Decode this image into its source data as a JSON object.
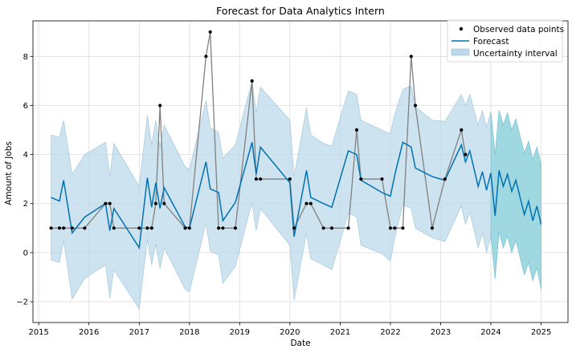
{
  "chart_data": {
    "type": "line",
    "title": "Forecast for Data Analytics Intern",
    "xlabel": "Date",
    "ylabel": "Amount of Jobs",
    "xlim": [
      "2014-11-20",
      "2025-07-15"
    ],
    "ylim": [
      -2.85,
      9.45
    ],
    "x_ticks": [
      "2015-01-01",
      "2016-01-01",
      "2017-01-01",
      "2018-01-01",
      "2019-01-01",
      "2020-01-01",
      "2021-01-01",
      "2022-01-01",
      "2023-01-01",
      "2024-01-01",
      "2025-01-01"
    ],
    "x_tick_labels": [
      "2015",
      "2016",
      "2017",
      "2018",
      "2019",
      "2020",
      "2021",
      "2022",
      "2023",
      "2024",
      "2025"
    ],
    "y_ticks": [
      -2,
      0,
      2,
      4,
      6,
      8
    ],
    "grid": true,
    "legend_position": "top-right",
    "legend": [
      {
        "label": "Observed data points",
        "kind": "marker"
      },
      {
        "label": "Forecast",
        "kind": "line"
      },
      {
        "label": "Uncertainty interval",
        "kind": "patch"
      }
    ],
    "colors": {
      "observed": "#000000",
      "observed_line": "#808080",
      "forecast": "#0072B2",
      "interval": "#bcd9ea",
      "interval_future": "#8dd3dd"
    },
    "forecast_start": "2024-01-01",
    "observed": [
      {
        "x": "2015-04-01",
        "y": 1
      },
      {
        "x": "2015-06-01",
        "y": 1
      },
      {
        "x": "2015-07-01",
        "y": 1
      },
      {
        "x": "2015-09-01",
        "y": 1
      },
      {
        "x": "2015-12-01",
        "y": 1
      },
      {
        "x": "2016-05-01",
        "y": 2
      },
      {
        "x": "2016-06-01",
        "y": 2
      },
      {
        "x": "2016-07-01",
        "y": 1
      },
      {
        "x": "2017-01-01",
        "y": 1
      },
      {
        "x": "2017-03-01",
        "y": 1
      },
      {
        "x": "2017-04-01",
        "y": 1
      },
      {
        "x": "2017-05-01",
        "y": 2
      },
      {
        "x": "2017-06-01",
        "y": 6
      },
      {
        "x": "2017-07-01",
        "y": 2
      },
      {
        "x": "2017-12-01",
        "y": 1
      },
      {
        "x": "2018-01-01",
        "y": 1
      },
      {
        "x": "2018-05-01",
        "y": 8
      },
      {
        "x": "2018-06-01",
        "y": 9
      },
      {
        "x": "2018-08-01",
        "y": 1
      },
      {
        "x": "2018-09-01",
        "y": 1
      },
      {
        "x": "2018-12-01",
        "y": 1
      },
      {
        "x": "2019-04-01",
        "y": 7
      },
      {
        "x": "2019-05-01",
        "y": 3
      },
      {
        "x": "2019-06-01",
        "y": 3
      },
      {
        "x": "2020-01-01",
        "y": 3
      },
      {
        "x": "2020-02-01",
        "y": 1
      },
      {
        "x": "2020-05-01",
        "y": 2
      },
      {
        "x": "2020-06-01",
        "y": 2
      },
      {
        "x": "2020-09-01",
        "y": 1
      },
      {
        "x": "2020-11-01",
        "y": 1
      },
      {
        "x": "2021-03-01",
        "y": 1
      },
      {
        "x": "2021-05-01",
        "y": 5
      },
      {
        "x": "2021-06-01",
        "y": 3
      },
      {
        "x": "2021-11-01",
        "y": 3
      },
      {
        "x": "2022-01-01",
        "y": 1
      },
      {
        "x": "2022-02-01",
        "y": 1
      },
      {
        "x": "2022-04-01",
        "y": 1
      },
      {
        "x": "2022-06-01",
        "y": 8
      },
      {
        "x": "2022-07-01",
        "y": 6
      },
      {
        "x": "2022-11-01",
        "y": 1
      },
      {
        "x": "2023-02-01",
        "y": 3
      },
      {
        "x": "2023-06-01",
        "y": 5
      },
      {
        "x": "2023-07-01",
        "y": 4
      }
    ],
    "forecast": [
      {
        "x": "2015-04-01",
        "y": 2.25,
        "lo": -0.3,
        "hi": 4.8
      },
      {
        "x": "2015-06-01",
        "y": 2.1,
        "lo": -0.4,
        "hi": 4.7
      },
      {
        "x": "2015-07-01",
        "y": 2.95,
        "lo": 0.5,
        "hi": 5.4
      },
      {
        "x": "2015-09-01",
        "y": 0.8,
        "lo": -1.9,
        "hi": 3.2
      },
      {
        "x": "2015-12-01",
        "y": 1.45,
        "lo": -1.05,
        "hi": 4.0
      },
      {
        "x": "2016-05-01",
        "y": 2.0,
        "lo": -0.5,
        "hi": 4.5
      },
      {
        "x": "2016-06-01",
        "y": 0.9,
        "lo": -1.85,
        "hi": 3.1
      },
      {
        "x": "2016-07-01",
        "y": 1.8,
        "lo": -0.7,
        "hi": 4.45
      },
      {
        "x": "2017-01-01",
        "y": 0.2,
        "lo": -2.3,
        "hi": 2.7
      },
      {
        "x": "2017-03-01",
        "y": 3.05,
        "lo": 0.55,
        "hi": 5.6
      },
      {
        "x": "2017-04-01",
        "y": 1.85,
        "lo": -0.5,
        "hi": 4.4
      },
      {
        "x": "2017-05-01",
        "y": 2.85,
        "lo": 0.35,
        "hi": 5.4
      },
      {
        "x": "2017-06-01",
        "y": 1.8,
        "lo": -0.65,
        "hi": 4.3
      },
      {
        "x": "2017-07-01",
        "y": 2.65,
        "lo": 0.2,
        "hi": 5.2
      },
      {
        "x": "2017-12-01",
        "y": 1.05,
        "lo": -1.5,
        "hi": 3.5
      },
      {
        "x": "2018-01-01",
        "y": 1.0,
        "lo": -1.6,
        "hi": 3.4
      },
      {
        "x": "2018-05-01",
        "y": 3.7,
        "lo": 1.2,
        "hi": 6.2
      },
      {
        "x": "2018-06-01",
        "y": 2.6,
        "lo": 0.05,
        "hi": 5.1
      },
      {
        "x": "2018-08-01",
        "y": 2.45,
        "lo": -0.1,
        "hi": 4.9
      },
      {
        "x": "2018-09-01",
        "y": 1.3,
        "lo": -1.25,
        "hi": 3.85
      },
      {
        "x": "2018-12-01",
        "y": 2.05,
        "lo": -0.55,
        "hi": 4.4
      },
      {
        "x": "2019-04-01",
        "y": 4.5,
        "lo": 2.05,
        "hi": 7.0
      },
      {
        "x": "2019-05-01",
        "y": 3.2,
        "lo": 0.9,
        "hi": 5.7
      },
      {
        "x": "2019-06-01",
        "y": 4.3,
        "lo": 1.8,
        "hi": 6.75
      },
      {
        "x": "2020-01-01",
        "y": 2.85,
        "lo": 0.3,
        "hi": 5.4
      },
      {
        "x": "2020-02-01",
        "y": 0.65,
        "lo": -1.95,
        "hi": 3.1
      },
      {
        "x": "2020-05-01",
        "y": 3.35,
        "lo": 0.8,
        "hi": 5.9
      },
      {
        "x": "2020-06-01",
        "y": 2.25,
        "lo": -0.25,
        "hi": 4.8
      },
      {
        "x": "2020-09-01",
        "y": 2.0,
        "lo": -0.5,
        "hi": 4.45
      },
      {
        "x": "2020-11-01",
        "y": 1.85,
        "lo": -0.7,
        "hi": 4.35
      },
      {
        "x": "2021-03-01",
        "y": 4.15,
        "lo": 1.6,
        "hi": 6.6
      },
      {
        "x": "2021-05-01",
        "y": 4.0,
        "lo": 1.45,
        "hi": 6.45
      },
      {
        "x": "2021-06-01",
        "y": 2.95,
        "lo": 0.3,
        "hi": 5.4
      },
      {
        "x": "2021-11-01",
        "y": 2.45,
        "lo": -0.05,
        "hi": 5.0
      },
      {
        "x": "2022-01-01",
        "y": 2.3,
        "lo": -0.35,
        "hi": 4.85
      },
      {
        "x": "2022-02-01",
        "y": 3.15,
        "lo": 0.6,
        "hi": 5.65
      },
      {
        "x": "2022-04-01",
        "y": 4.5,
        "lo": 1.95,
        "hi": 6.65
      },
      {
        "x": "2022-06-01",
        "y": 4.3,
        "lo": 1.8,
        "hi": 6.8
      },
      {
        "x": "2022-07-01",
        "y": 3.45,
        "lo": 1.0,
        "hi": 5.95
      },
      {
        "x": "2022-11-01",
        "y": 3.1,
        "lo": 0.6,
        "hi": 5.4
      },
      {
        "x": "2023-02-01",
        "y": 2.95,
        "lo": 0.45,
        "hi": 5.35
      },
      {
        "x": "2023-06-01",
        "y": 4.4,
        "lo": 1.9,
        "hi": 6.45
      },
      {
        "x": "2023-07-01",
        "y": 3.7,
        "lo": 1.15,
        "hi": 6.0
      },
      {
        "x": "2023-08-01",
        "y": 4.15,
        "lo": 1.65,
        "hi": 6.45
      },
      {
        "x": "2023-10-01",
        "y": 2.7,
        "lo": 0.2,
        "hi": 5.2
      },
      {
        "x": "2023-11-01",
        "y": 3.3,
        "lo": 0.8,
        "hi": 5.8
      },
      {
        "x": "2023-12-01",
        "y": 2.55,
        "lo": 0.0,
        "hi": 5.1
      },
      {
        "x": "2024-01-01",
        "y": 3.25,
        "lo": 0.7,
        "hi": 5.75
      },
      {
        "x": "2024-02-01",
        "y": 1.5,
        "lo": -1.05,
        "hi": 4.0
      },
      {
        "x": "2024-03-01",
        "y": 3.35,
        "lo": 0.85,
        "hi": 5.8
      },
      {
        "x": "2024-04-01",
        "y": 2.7,
        "lo": 0.2,
        "hi": 5.2
      },
      {
        "x": "2024-05-01",
        "y": 3.2,
        "lo": 0.7,
        "hi": 5.7
      },
      {
        "x": "2024-06-01",
        "y": 2.5,
        "lo": 0.0,
        "hi": 5.0
      },
      {
        "x": "2024-07-01",
        "y": 2.95,
        "lo": 0.5,
        "hi": 5.45
      },
      {
        "x": "2024-09-01",
        "y": 1.55,
        "lo": -0.9,
        "hi": 4.05
      },
      {
        "x": "2024-10-01",
        "y": 2.1,
        "lo": -0.4,
        "hi": 4.55
      },
      {
        "x": "2024-11-01",
        "y": 1.3,
        "lo": -1.15,
        "hi": 3.8
      },
      {
        "x": "2024-12-01",
        "y": 1.9,
        "lo": -0.6,
        "hi": 4.3
      },
      {
        "x": "2025-01-01",
        "y": 1.15,
        "lo": -1.5,
        "hi": 3.6
      }
    ]
  }
}
